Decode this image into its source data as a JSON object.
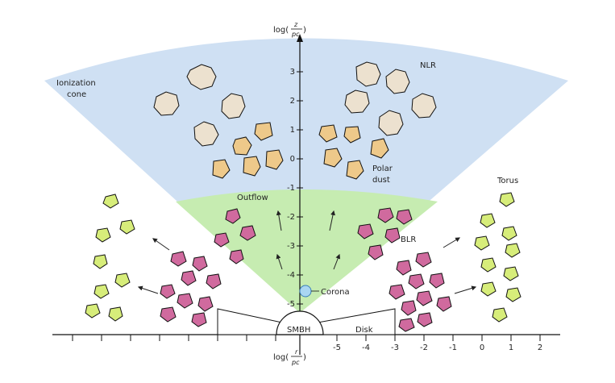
{
  "labels": {
    "ionization_line1": "Ionization",
    "ionization_line2": "cone",
    "nlr": "NLR",
    "polar_line1": "Polar",
    "polar_line2": "dust",
    "torus": "Torus",
    "outflow": "Outflow",
    "blr": "BLR",
    "corona": "Corona",
    "smbh": "SMBH",
    "disk": "Disk"
  },
  "axes": {
    "z_label_prefix": "log(",
    "z_label_num": "z",
    "z_label_den": "pc",
    "z_label_suffix": ")",
    "r_label_prefix": "log(",
    "r_label_num": "r",
    "r_label_den": "pc",
    "r_label_suffix": ")",
    "z_ticks": [
      "3",
      "2",
      "1",
      "0",
      "-1",
      "-2",
      "-3",
      "-4",
      "-5"
    ],
    "r_ticks": [
      "-5",
      "-4",
      "-3",
      "-2",
      "-1",
      "0",
      "1",
      "2"
    ]
  },
  "colors": {
    "cone": "#cfe0f3",
    "outflow": "#c6ecb1",
    "nlr_cloud": "#ece1cf",
    "polar_dust": "#eec98a",
    "blr_cloud": "#d06a9e",
    "torus_cloud": "#d7ed7a",
    "corona": "#a9d6f2"
  }
}
